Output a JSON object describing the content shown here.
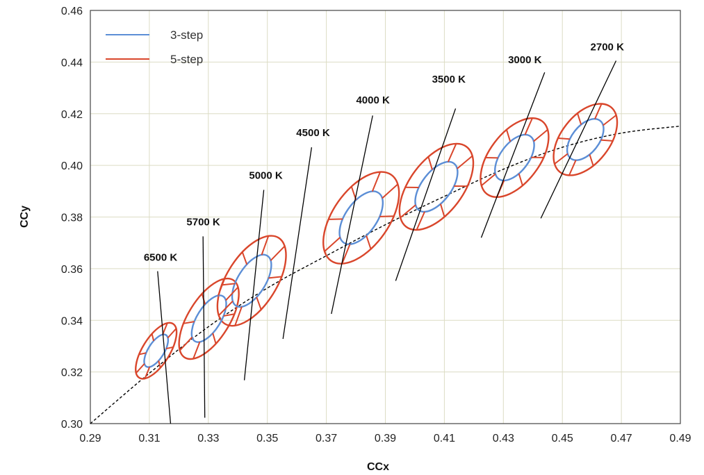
{
  "chart_data": {
    "type": "scatter",
    "title": "",
    "xlabel": "CCx",
    "ylabel": "CCy",
    "xlim": [
      0.29,
      0.49
    ],
    "ylim": [
      0.3,
      0.46
    ],
    "x_ticks": [
      "0.29",
      "0.31",
      "0.33",
      "0.35",
      "0.37",
      "0.39",
      "0.41",
      "0.43",
      "0.45",
      "0.47",
      "0.49"
    ],
    "y_ticks": [
      "0.30",
      "0.32",
      "0.34",
      "0.36",
      "0.38",
      "0.40",
      "0.42",
      "0.44",
      "0.46"
    ],
    "grid": true,
    "legend": {
      "placement": "top-left",
      "entries": [
        "3-step",
        "5-step"
      ]
    },
    "colors": {
      "three_step": "#5b8ed6",
      "five_step": "#d9462b",
      "grid": "#dcdcc4",
      "curve": "#000000"
    },
    "series": [
      {
        "name": "3-step",
        "ellipses": [
          {
            "cct": "6500 K",
            "center": [
              0.3123,
              0.3282
            ],
            "a": 0.0063,
            "b": 0.0027,
            "angle_deg": 58
          },
          {
            "cct": "5700 K",
            "center": [
              0.3302,
              0.3406
            ],
            "a": 0.009,
            "b": 0.004,
            "angle_deg": 58
          },
          {
            "cct": "5000 K",
            "center": [
              0.3447,
              0.3553
            ],
            "a": 0.01,
            "b": 0.0047,
            "angle_deg": 58
          },
          {
            "cct": "4000 K",
            "center": [
              0.3818,
              0.3797
            ],
            "a": 0.0103,
            "b": 0.0053,
            "angle_deg": 55
          },
          {
            "cct": "3500 K",
            "center": [
              0.4073,
              0.3917
            ],
            "a": 0.0099,
            "b": 0.005,
            "angle_deg": 53
          },
          {
            "cct": "3000 K",
            "center": [
              0.4338,
              0.403
            ],
            "a": 0.009,
            "b": 0.0048,
            "angle_deg": 53
          },
          {
            "cct": "2700 K",
            "center": [
              0.4578,
              0.41
            ],
            "a": 0.0081,
            "b": 0.0046,
            "angle_deg": 52
          }
        ]
      },
      {
        "name": "5-step",
        "ellipses": [
          {
            "cct": "6500 K",
            "center": [
              0.3123,
              0.3282
            ],
            "a": 0.0108,
            "b": 0.0046,
            "angle_deg": 58
          },
          {
            "cct": "5700 K",
            "center": [
              0.3302,
              0.3406
            ],
            "a": 0.0155,
            "b": 0.007,
            "angle_deg": 58
          },
          {
            "cct": "5000 K",
            "center": [
              0.3447,
              0.3553
            ],
            "a": 0.0172,
            "b": 0.0085,
            "angle_deg": 58
          },
          {
            "cct": "4000 K",
            "center": [
              0.3818,
              0.3797
            ],
            "a": 0.0178,
            "b": 0.0095,
            "angle_deg": 55
          },
          {
            "cct": "3500 K",
            "center": [
              0.4073,
              0.3917
            ],
            "a": 0.017,
            "b": 0.009,
            "angle_deg": 53
          },
          {
            "cct": "3000 K",
            "center": [
              0.4338,
              0.403
            ],
            "a": 0.0155,
            "b": 0.0085,
            "angle_deg": 53
          },
          {
            "cct": "2700 K",
            "center": [
              0.4578,
              0.41
            ],
            "a": 0.014,
            "b": 0.0082,
            "angle_deg": 52
          }
        ]
      }
    ],
    "planckian_locus": {
      "style": "dashed",
      "points": [
        [
          0.29,
          0.3
        ],
        [
          0.31,
          0.3195
        ],
        [
          0.33,
          0.3375
        ],
        [
          0.35,
          0.3525
        ],
        [
          0.37,
          0.365
        ],
        [
          0.39,
          0.377
        ],
        [
          0.41,
          0.388
        ],
        [
          0.43,
          0.3985
        ],
        [
          0.45,
          0.407
        ],
        [
          0.47,
          0.4125
        ],
        [
          0.49,
          0.4152
        ]
      ]
    },
    "isotemperature_lines": [
      {
        "label": "6500 K",
        "start": [
          0.3172,
          0.3
        ],
        "end": [
          0.3128,
          0.359
        ],
        "label_at": [
          0.3138,
          0.363
        ]
      },
      {
        "label": "5700 K",
        "start": [
          0.3288,
          0.3023
        ],
        "end": [
          0.3282,
          0.3725
        ],
        "label_at": [
          0.3283,
          0.3768
        ]
      },
      {
        "label": "5000 K",
        "start": [
          0.3422,
          0.3168
        ],
        "end": [
          0.3488,
          0.3905
        ],
        "label_at": [
          0.3495,
          0.3948
        ]
      },
      {
        "label": "4500 K",
        "start": [
          0.3553,
          0.3328
        ],
        "end": [
          0.365,
          0.407
        ],
        "label_at": [
          0.3655,
          0.4113
        ]
      },
      {
        "label": "4000 K",
        "start": [
          0.3717,
          0.3425
        ],
        "end": [
          0.3857,
          0.4193
        ],
        "label_at": [
          0.3858,
          0.424
        ]
      },
      {
        "label": "3500 K",
        "start": [
          0.3935,
          0.3553
        ],
        "end": [
          0.4138,
          0.422
        ],
        "label_at": [
          0.4115,
          0.432
        ]
      },
      {
        "label": "3000 K",
        "start": [
          0.4225,
          0.372
        ],
        "end": [
          0.444,
          0.436
        ],
        "label_at": [
          0.4373,
          0.4395
        ]
      },
      {
        "label": "2700 K",
        "start": [
          0.4427,
          0.3795
        ],
        "end": [
          0.4682,
          0.4405
        ],
        "label_at": [
          0.4652,
          0.4445
        ]
      }
    ]
  }
}
